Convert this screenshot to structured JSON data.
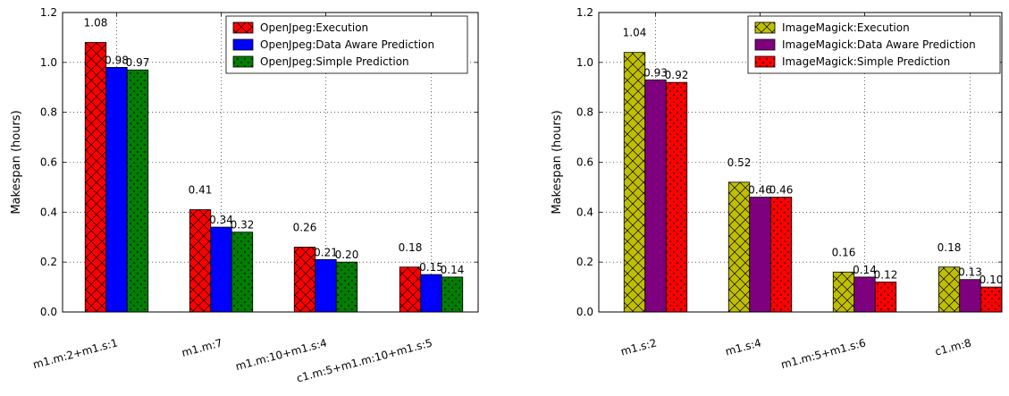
{
  "chart_data": [
    {
      "type": "bar",
      "title": "",
      "xlabel": "",
      "ylabel": "Makespan (hours)",
      "ylim": [
        0,
        1.2
      ],
      "yticks": [
        "0.0",
        "0.2",
        "0.4",
        "0.6",
        "0.8",
        "1.0",
        "1.2"
      ],
      "grid": true,
      "legend_position": "top-right",
      "categories": [
        "m1.m:2+m1.s:1",
        "m1.m:7",
        "m1.m:10+m1.s:4",
        "c1.m:5+m1.m:10+m1.s:5"
      ],
      "series": [
        {
          "name": "OpenJpeg:Execution",
          "color": "#ff0000",
          "hatch": "cross",
          "values": [
            1.08,
            0.41,
            0.26,
            0.18
          ],
          "labels": [
            "1.08",
            "0.41",
            "0.26",
            "0.18"
          ]
        },
        {
          "name": "OpenJpeg:Data Aware Prediction",
          "color": "#0000ff",
          "hatch": "none",
          "values": [
            0.98,
            0.34,
            0.21,
            0.15
          ],
          "labels": [
            "0.98",
            "0.34",
            "0.21",
            "0.15"
          ]
        },
        {
          "name": "OpenJpeg:Simple Prediction",
          "color": "#007f00",
          "hatch": "dots",
          "values": [
            0.97,
            0.32,
            0.2,
            0.14
          ],
          "labels": [
            "0.97",
            "0.32",
            "0.20",
            "0.14"
          ]
        }
      ]
    },
    {
      "type": "bar",
      "title": "",
      "xlabel": "",
      "ylabel": "Makespan (hours)",
      "ylim": [
        0,
        1.2
      ],
      "yticks": [
        "0.0",
        "0.2",
        "0.4",
        "0.6",
        "0.8",
        "1.0",
        "1.2"
      ],
      "grid": true,
      "legend_position": "top-right",
      "categories": [
        "m1.s:2",
        "m1.s:4",
        "m1.m:5+m1.s:6",
        "c1.m:8"
      ],
      "series": [
        {
          "name": "ImageMagick:Execution",
          "color": "#bfbf00",
          "hatch": "cross",
          "values": [
            1.04,
            0.52,
            0.16,
            0.18
          ],
          "labels": [
            "1.04",
            "0.52",
            "0.16",
            "0.18"
          ]
        },
        {
          "name": "ImageMagick:Data Aware Prediction",
          "color": "#7f007f",
          "hatch": "none",
          "values": [
            0.93,
            0.46,
            0.14,
            0.13
          ],
          "labels": [
            "0.93",
            "0.46",
            "0.14",
            "0.13"
          ]
        },
        {
          "name": "ImageMagick:Simple Prediction",
          "color": "#ff0000",
          "hatch": "dots",
          "values": [
            0.92,
            0.46,
            0.12,
            0.1
          ],
          "labels": [
            "0.92",
            "0.46",
            "0.12",
            "0.10"
          ]
        }
      ]
    }
  ]
}
